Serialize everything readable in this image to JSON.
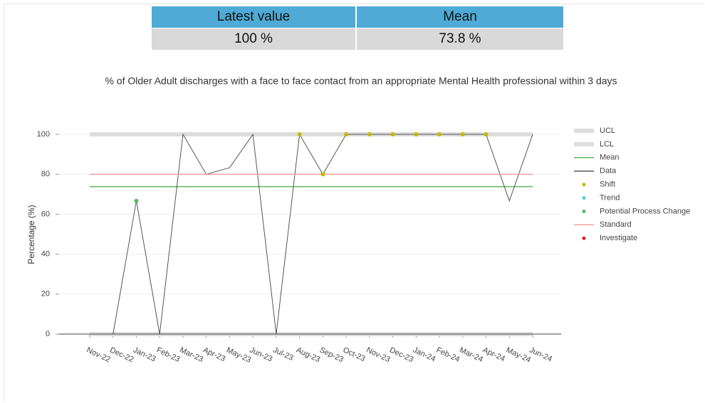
{
  "summary": {
    "headers": [
      "Latest value",
      "Mean"
    ],
    "rows": [
      [
        "100 %",
        "73.8 %"
      ]
    ]
  },
  "chart_data": {
    "type": "line",
    "title": "% of Older Adult discharges with a face to face contact from an appropriate Mental Health professional within 3 days",
    "y_label": "Percentage (%)",
    "categories": [
      "Nov-22",
      "Dec-22",
      "Jan-23",
      "Feb-23",
      "Mar-23",
      "Apr-23",
      "May-23",
      "Jun-23",
      "Jul-23",
      "Aug-23",
      "Sep-23",
      "Oct-23",
      "Nov-23",
      "Dec-23",
      "Jan-24",
      "Feb-24",
      "Mar-24",
      "Apr-24",
      "May-24",
      "Jun-24"
    ],
    "ylim": [
      0,
      100
    ],
    "yticks": [
      0,
      20,
      40,
      60,
      80,
      100
    ],
    "grid": true,
    "legend": "right",
    "series": [
      {
        "name": "UCL",
        "color": "#dddddd",
        "style": "band",
        "values": [
          100,
          100,
          100,
          100,
          100,
          100,
          100,
          100,
          100,
          100,
          100,
          100,
          100,
          100,
          100,
          100,
          100,
          100,
          100,
          100
        ]
      },
      {
        "name": "LCL",
        "color": "#dddddd",
        "style": "band",
        "values": [
          0,
          0,
          0,
          0,
          0,
          0,
          0,
          0,
          0,
          0,
          0,
          0,
          0,
          0,
          0,
          0,
          0,
          0,
          0,
          0
        ]
      },
      {
        "name": "Mean",
        "color": "#5cb85c",
        "style": "line",
        "values": [
          73.8,
          73.8,
          73.8,
          73.8,
          73.8,
          73.8,
          73.8,
          73.8,
          73.8,
          73.8,
          73.8,
          73.8,
          73.8,
          73.8,
          73.8,
          73.8,
          73.8,
          73.8,
          73.8,
          73.8
        ]
      },
      {
        "name": "Data",
        "color": "#555555",
        "style": "line",
        "values": [
          0,
          0,
          66.7,
          0,
          100,
          80,
          83.3,
          100,
          0,
          100,
          80,
          100,
          100,
          100,
          100,
          100,
          100,
          100,
          66.7,
          100
        ]
      },
      {
        "name": "Shift",
        "color": "#c9b800",
        "style": "points",
        "values": [
          null,
          null,
          null,
          null,
          null,
          null,
          null,
          null,
          null,
          100,
          80,
          100,
          100,
          100,
          100,
          100,
          100,
          100,
          null,
          null
        ]
      },
      {
        "name": "Trend",
        "color": "#4dd0d0",
        "style": "points",
        "values": [
          null,
          null,
          null,
          null,
          null,
          null,
          null,
          null,
          null,
          null,
          null,
          null,
          null,
          null,
          null,
          null,
          null,
          null,
          null,
          null
        ]
      },
      {
        "name": "Potential Process Change",
        "color": "#5cb85c",
        "style": "points",
        "values": [
          null,
          null,
          66.7,
          null,
          null,
          null,
          null,
          null,
          null,
          null,
          null,
          null,
          null,
          null,
          null,
          null,
          null,
          null,
          null,
          null
        ]
      },
      {
        "name": "Standard",
        "color": "#f4a0a0",
        "style": "line",
        "values": [
          80,
          80,
          80,
          80,
          80,
          80,
          80,
          80,
          80,
          80,
          80,
          80,
          80,
          80,
          80,
          80,
          80,
          80,
          80,
          80
        ]
      },
      {
        "name": "Investigate",
        "color": "#e02020",
        "style": "points",
        "values": [
          null,
          null,
          null,
          null,
          null,
          null,
          null,
          null,
          null,
          null,
          null,
          null,
          null,
          null,
          null,
          null,
          null,
          null,
          null,
          null
        ]
      }
    ]
  }
}
